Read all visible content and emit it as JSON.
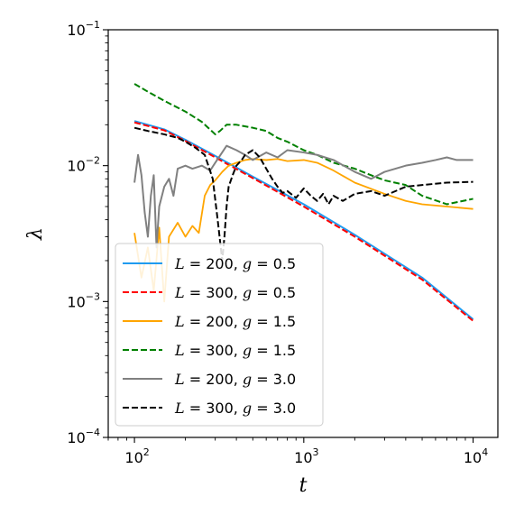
{
  "chart_data": {
    "type": "line",
    "xlabel": "t",
    "ylabel": "λ",
    "xscale": "log",
    "yscale": "log",
    "xlim": [
      70,
      14000
    ],
    "ylim": [
      0.0001,
      0.1
    ],
    "grid": false,
    "legend_position": "lower-left",
    "x_ticks": [
      {
        "value": 100,
        "base": "10",
        "exp": "2"
      },
      {
        "value": 1000,
        "base": "10",
        "exp": "3"
      },
      {
        "value": 10000,
        "base": "10",
        "exp": "4"
      }
    ],
    "y_ticks": [
      {
        "value": 0.0001,
        "base": "10",
        "exp": "−4"
      },
      {
        "value": 0.001,
        "base": "10",
        "exp": "−3"
      },
      {
        "value": 0.01,
        "base": "10",
        "exp": "−2"
      },
      {
        "value": 0.1,
        "base": "10",
        "exp": "−1"
      }
    ],
    "series": [
      {
        "name": "L = 200, g = 0.5",
        "label_L": "200",
        "label_g": "0.5",
        "color": "#1f9bf0",
        "dash": "solid",
        "width": 2,
        "x": [
          100,
          150,
          200,
          300,
          500,
          1000,
          2000,
          5000,
          10000
        ],
        "y": [
          0.0213,
          0.0185,
          0.0155,
          0.0118,
          0.0083,
          0.0052,
          0.0031,
          0.0015,
          0.00074
        ]
      },
      {
        "name": "L = 300, g = 0.5",
        "label_L": "300",
        "label_g": "0.5",
        "color": "#ff0000",
        "dash": "dashed",
        "width": 2,
        "x": [
          100,
          150,
          200,
          300,
          500,
          1000,
          2000,
          5000,
          10000
        ],
        "y": [
          0.0208,
          0.0182,
          0.0152,
          0.0115,
          0.0081,
          0.005,
          0.003,
          0.00145,
          0.00072
        ]
      },
      {
        "name": "L = 200, g = 1.5",
        "label_L": "200",
        "label_g": "1.5",
        "color": "#ffa500",
        "dash": "solid",
        "width": 1.8,
        "x": [
          100,
          110,
          120,
          130,
          140,
          150,
          160,
          180,
          200,
          220,
          240,
          260,
          280,
          300,
          330,
          360,
          400,
          450,
          500,
          600,
          700,
          800,
          1000,
          1200,
          1500,
          2000,
          3000,
          4000,
          5000,
          7000,
          10000
        ],
        "y": [
          0.0032,
          0.0015,
          0.0025,
          0.0012,
          0.0035,
          0.001,
          0.003,
          0.0038,
          0.003,
          0.0036,
          0.0032,
          0.006,
          0.0072,
          0.0078,
          0.009,
          0.01,
          0.0105,
          0.011,
          0.0112,
          0.011,
          0.0112,
          0.0108,
          0.011,
          0.0105,
          0.0092,
          0.0075,
          0.0062,
          0.0055,
          0.0052,
          0.005,
          0.0048
        ]
      },
      {
        "name": "L = 300, g = 1.5",
        "label_L": "300",
        "label_g": "1.5",
        "color": "#008000",
        "dash": "dashed",
        "width": 2,
        "x": [
          100,
          120,
          150,
          200,
          250,
          300,
          320,
          350,
          400,
          500,
          600,
          700,
          800,
          1000,
          1200,
          1500,
          2000,
          2500,
          3000,
          4000,
          5000,
          7000,
          10000
        ],
        "y": [
          0.04,
          0.035,
          0.03,
          0.025,
          0.021,
          0.017,
          0.018,
          0.02,
          0.02,
          0.019,
          0.018,
          0.016,
          0.015,
          0.013,
          0.012,
          0.0105,
          0.0095,
          0.0085,
          0.0078,
          0.0072,
          0.006,
          0.0052,
          0.0057
        ]
      },
      {
        "name": "L = 200, g = 3.0",
        "label_L": "200",
        "label_g": "3.0",
        "color": "#808080",
        "dash": "solid",
        "width": 2,
        "x": [
          100,
          105,
          110,
          115,
          120,
          125,
          130,
          135,
          140,
          150,
          160,
          170,
          180,
          200,
          220,
          250,
          280,
          300,
          350,
          400,
          450,
          500,
          600,
          700,
          800,
          1000,
          1200,
          1500,
          2000,
          2500,
          3000,
          4000,
          5000,
          6000,
          7000,
          8000,
          10000
        ],
        "y": [
          0.0075,
          0.012,
          0.0085,
          0.0045,
          0.003,
          0.006,
          0.0085,
          0.0025,
          0.005,
          0.007,
          0.008,
          0.006,
          0.0095,
          0.01,
          0.0095,
          0.01,
          0.0092,
          0.0105,
          0.014,
          0.013,
          0.012,
          0.011,
          0.0125,
          0.0115,
          0.013,
          0.0125,
          0.012,
          0.011,
          0.009,
          0.008,
          0.009,
          0.01,
          0.0105,
          0.011,
          0.0115,
          0.011,
          0.011
        ]
      },
      {
        "name": "L = 300, g = 3.0",
        "label_L": "300",
        "label_g": "3.0",
        "color": "#000000",
        "dash": "dashed",
        "width": 2,
        "x": [
          100,
          120,
          150,
          180,
          200,
          230,
          260,
          290,
          310,
          330,
          340,
          350,
          360,
          380,
          400,
          430,
          450,
          500,
          550,
          600,
          650,
          700,
          750,
          800,
          900,
          1000,
          1100,
          1200,
          1300,
          1400,
          1500,
          1700,
          2000,
          2500,
          3000,
          4000,
          5000,
          7000,
          10000
        ],
        "y": [
          0.019,
          0.018,
          0.017,
          0.016,
          0.015,
          0.0135,
          0.012,
          0.008,
          0.004,
          0.002,
          0.003,
          0.005,
          0.007,
          0.0085,
          0.01,
          0.011,
          0.012,
          0.013,
          0.0115,
          0.0095,
          0.008,
          0.007,
          0.0063,
          0.0065,
          0.0058,
          0.0068,
          0.006,
          0.0055,
          0.0062,
          0.0052,
          0.006,
          0.0055,
          0.0062,
          0.0065,
          0.006,
          0.007,
          0.0072,
          0.0075,
          0.0076
        ]
      }
    ]
  }
}
